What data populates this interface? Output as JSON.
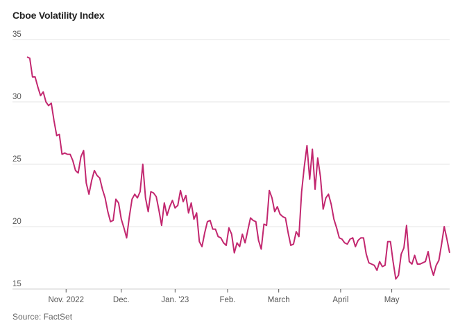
{
  "chart_data": {
    "type": "line",
    "title": "Cboe Volatility Index",
    "source": "Source: FactSet",
    "xlabel": "",
    "ylabel": "",
    "ylim": [
      15,
      35
    ],
    "yticks": [
      35,
      30,
      25,
      20,
      15
    ],
    "xticks": [
      {
        "label": "Nov. 2022",
        "index": 14.5
      },
      {
        "label": "Dec.",
        "index": 35
      },
      {
        "label": "Jan. '23",
        "index": 55
      },
      {
        "label": "Feb.",
        "index": 74.5
      },
      {
        "label": "March",
        "index": 93.5
      },
      {
        "label": "April",
        "index": 116.5
      },
      {
        "label": "May",
        "index": 135.5
      }
    ],
    "grid": true,
    "line_color": "#c2276f",
    "series": [
      {
        "name": "Cboe Volatility Index",
        "values": [
          33.6,
          33.5,
          32.0,
          32.0,
          31.2,
          30.5,
          30.8,
          30.0,
          29.7,
          29.9,
          28.5,
          27.3,
          27.4,
          25.8,
          25.9,
          25.8,
          25.8,
          25.3,
          24.5,
          24.3,
          25.6,
          26.1,
          23.5,
          22.6,
          23.7,
          24.5,
          24.1,
          23.9,
          23.0,
          22.3,
          21.2,
          20.4,
          20.5,
          22.2,
          21.9,
          20.6,
          19.9,
          19.1,
          20.8,
          22.2,
          22.6,
          22.3,
          22.8,
          25.0,
          22.3,
          21.2,
          22.8,
          22.7,
          22.4,
          21.3,
          20.1,
          21.9,
          20.9,
          21.6,
          22.1,
          21.5,
          21.7,
          22.9,
          22.0,
          22.5,
          21.1,
          21.9,
          20.6,
          21.1,
          18.8,
          18.4,
          19.5,
          20.4,
          20.5,
          19.8,
          19.8,
          19.2,
          19.1,
          18.7,
          18.5,
          19.9,
          19.4,
          17.9,
          18.7,
          18.4,
          19.4,
          18.7,
          19.7,
          20.7,
          20.5,
          20.4,
          18.9,
          18.2,
          20.2,
          20.1,
          22.9,
          22.3,
          21.2,
          21.6,
          21.0,
          20.8,
          20.7,
          19.5,
          18.5,
          18.6,
          19.6,
          19.2,
          22.8,
          24.8,
          26.5,
          23.8,
          26.2,
          23.0,
          25.5,
          24.0,
          21.4,
          22.3,
          22.6,
          21.8,
          20.6,
          19.9,
          19.1,
          19.0,
          18.7,
          18.6,
          19.0,
          19.1,
          18.4,
          18.9,
          19.1,
          19.1,
          17.8,
          17.1,
          17.0,
          16.9,
          16.5,
          17.2,
          16.8,
          16.9,
          18.8,
          18.8,
          17.2,
          15.8,
          16.1,
          17.8,
          18.3,
          20.1,
          17.2,
          17.0,
          17.7,
          17.0,
          17.0,
          17.1,
          17.2,
          18.0,
          16.8,
          16.1,
          16.9,
          17.3,
          18.6,
          20.0,
          19.0,
          17.9
        ]
      }
    ]
  }
}
